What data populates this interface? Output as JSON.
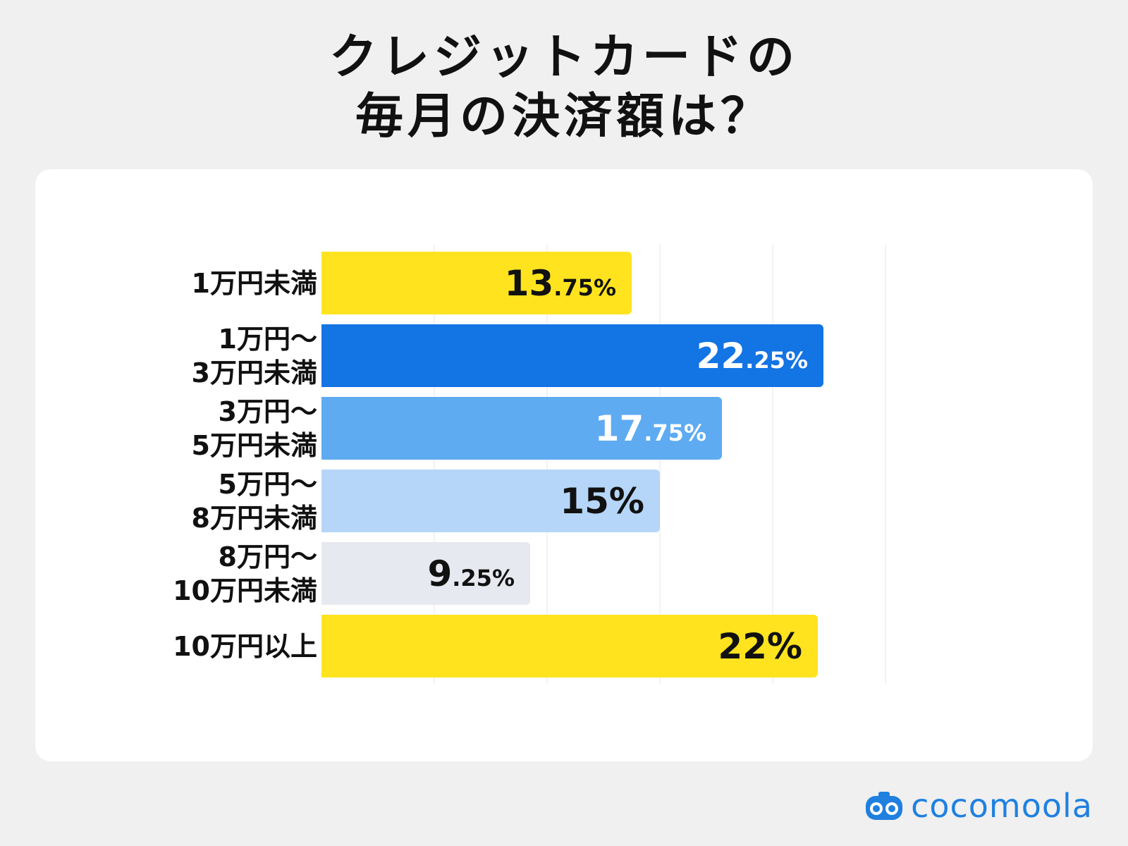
{
  "title": {
    "line1": "クレジットカードの",
    "line2": "毎月の決済額は？"
  },
  "chart_data": {
    "type": "bar",
    "orientation": "horizontal",
    "xlim": [
      0,
      25
    ],
    "categories": [
      [
        "1万円未満"
      ],
      [
        "1万円〜",
        "3万円未満"
      ],
      [
        "3万円〜",
        "5万円未満"
      ],
      [
        "5万円〜",
        "8万円未満"
      ],
      [
        "8万円〜",
        "10万円未満"
      ],
      [
        "10万円以上"
      ]
    ],
    "values": [
      13.75,
      22.25,
      17.75,
      15,
      9.25,
      22
    ],
    "value_labels": [
      {
        "int": "13",
        "dec": ".75%"
      },
      {
        "int": "22",
        "dec": ".25%"
      },
      {
        "int": "17",
        "dec": ".75%"
      },
      {
        "int": "15%",
        "dec": ""
      },
      {
        "int": "9",
        "dec": ".25%"
      },
      {
        "int": "22%",
        "dec": ""
      }
    ],
    "colors": [
      "#ffe31f",
      "#1374e4",
      "#5eabf2",
      "#b5d6f8",
      "#e6e9ef",
      "#ffe31f"
    ],
    "label_colors": [
      "#111111",
      "#ffffff",
      "#ffffff",
      "#111111",
      "#111111",
      "#111111"
    ],
    "grid": true
  },
  "logo": {
    "icon": "cocomoola-logo-icon",
    "text": "cocomoola",
    "color": "#1f80e0"
  }
}
